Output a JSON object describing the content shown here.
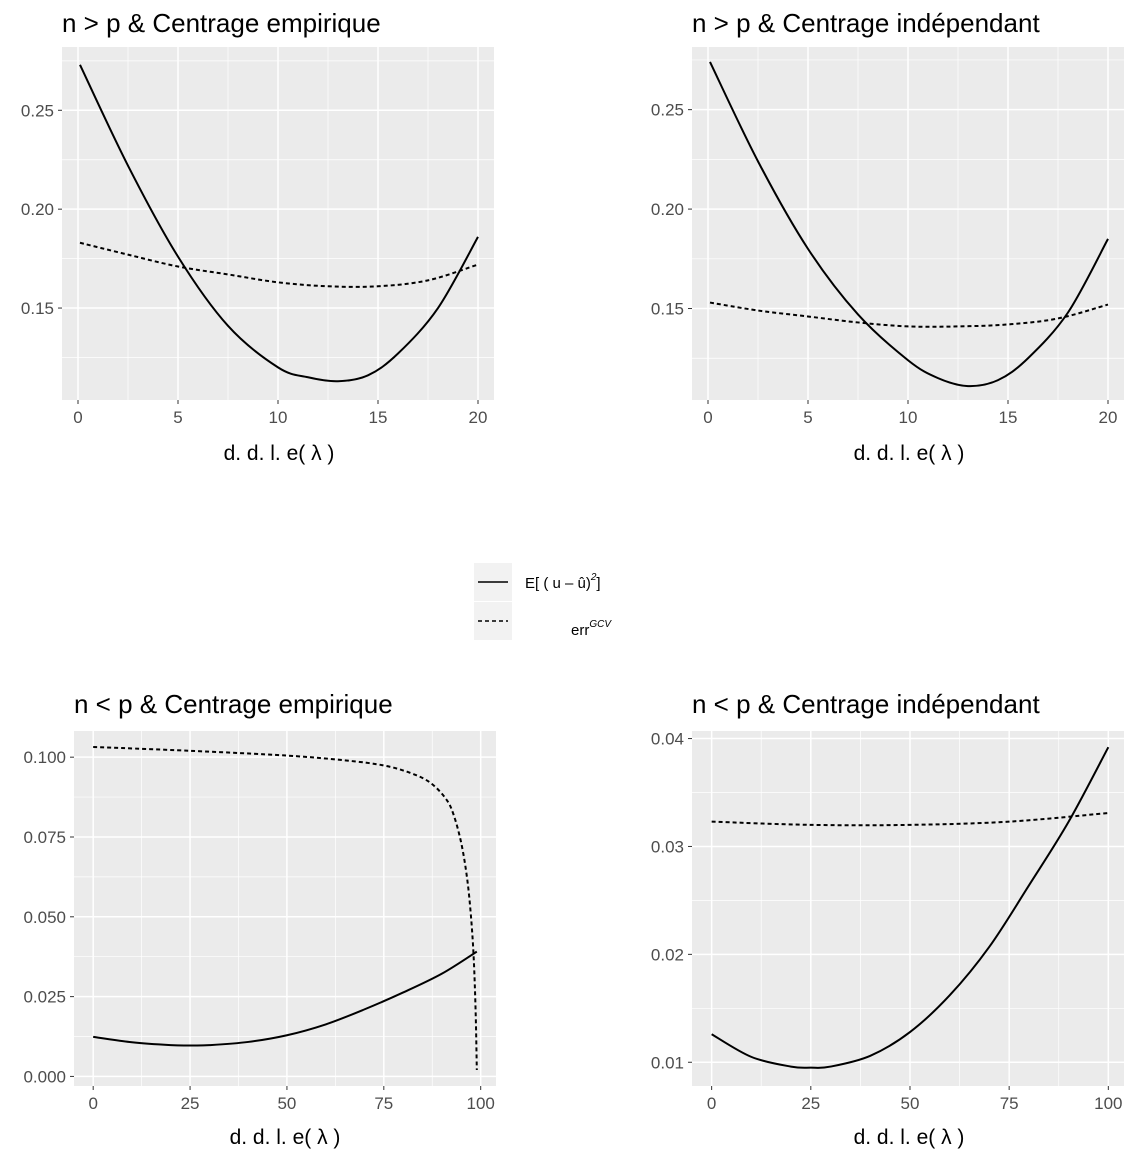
{
  "colors": {
    "panel_bg": "#ebebeb",
    "grid_major": "#ffffff",
    "tick_text": "#4d4d4d",
    "line": "#000000"
  },
  "legend": {
    "items": [
      {
        "key": "solid",
        "linetype": "solid",
        "label_main": "E[ ( u – û)",
        "label_sup": "2",
        "label_tail": "]"
      },
      {
        "key": "dashed",
        "linetype": "dashed",
        "label_main": "err",
        "label_sup": "GCV",
        "label_tail": ""
      }
    ]
  },
  "chart_data": [
    {
      "type": "line",
      "title": "n > p & Centrage empirique",
      "xlabel": "d. d. l. e( λ )",
      "ylabel": "",
      "xlim": [
        -0.8,
        20.8
      ],
      "ylim": [
        0.1035,
        0.282
      ],
      "x_ticks": [
        0,
        5,
        10,
        15,
        20
      ],
      "x_tick_labels": [
        "0",
        "5",
        "10",
        "15",
        "20"
      ],
      "y_ticks": [
        0.15,
        0.2,
        0.25
      ],
      "y_tick_labels": [
        "0.15",
        "0.20",
        "0.25"
      ],
      "grid": true,
      "series": [
        {
          "linetype": "solid",
          "x": [
            0.1,
            2.5,
            5,
            7.5,
            10,
            11.5,
            13,
            14.5,
            16,
            18,
            20
          ],
          "y": [
            0.273,
            0.222,
            0.176,
            0.141,
            0.12,
            0.115,
            0.113,
            0.116,
            0.127,
            0.15,
            0.186
          ]
        },
        {
          "linetype": "dashed",
          "x": [
            0.1,
            2.5,
            5,
            7.5,
            10,
            12.5,
            15,
            17.5,
            20
          ],
          "y": [
            0.183,
            0.177,
            0.171,
            0.167,
            0.163,
            0.161,
            0.161,
            0.164,
            0.172
          ]
        }
      ]
    },
    {
      "type": "line",
      "title": "n > p & Centrage indépendant",
      "xlabel": "d. d. l. e( λ )",
      "ylabel": "",
      "xlim": [
        -0.8,
        20.8
      ],
      "ylim": [
        0.104,
        0.2815
      ],
      "x_ticks": [
        0,
        5,
        10,
        15,
        20
      ],
      "x_tick_labels": [
        "0",
        "5",
        "10",
        "15",
        "20"
      ],
      "y_ticks": [
        0.15,
        0.2,
        0.25
      ],
      "y_tick_labels": [
        "0.15",
        "0.20",
        "0.25"
      ],
      "grid": true,
      "series": [
        {
          "linetype": "solid",
          "x": [
            0.1,
            2.5,
            5,
            7.5,
            10,
            11.5,
            13,
            14.5,
            16,
            18,
            20
          ],
          "y": [
            0.274,
            0.224,
            0.18,
            0.147,
            0.124,
            0.115,
            0.111,
            0.114,
            0.125,
            0.148,
            0.185
          ]
        },
        {
          "linetype": "dashed",
          "x": [
            0.1,
            2.5,
            5,
            7.5,
            10,
            12.5,
            15,
            17.5,
            20
          ],
          "y": [
            0.153,
            0.149,
            0.146,
            0.143,
            0.141,
            0.141,
            0.142,
            0.145,
            0.152
          ]
        }
      ]
    },
    {
      "type": "line",
      "title": "n < p & Centrage empirique",
      "xlabel": "d. d. l. e( λ )",
      "ylabel": "",
      "xlim": [
        -4.95,
        103.95
      ],
      "ylim": [
        -0.003,
        0.1082
      ],
      "x_ticks": [
        0,
        25,
        50,
        75,
        100
      ],
      "x_tick_labels": [
        "0",
        "25",
        "50",
        "75",
        "100"
      ],
      "y_ticks": [
        0.0,
        0.025,
        0.05,
        0.075,
        0.1
      ],
      "y_tick_labels": [
        "0.000",
        "0.025",
        "0.050",
        "0.075",
        "0.100"
      ],
      "grid": true,
      "series": [
        {
          "linetype": "solid",
          "x": [
            0,
            10,
            20,
            25,
            30,
            40,
            50,
            60,
            70,
            80,
            90,
            99
          ],
          "y": [
            0.0124,
            0.0107,
            0.0098,
            0.0097,
            0.0098,
            0.0108,
            0.0129,
            0.0163,
            0.021,
            0.0263,
            0.0322,
            0.0391
          ]
        },
        {
          "linetype": "dashed",
          "x": [
            0,
            25,
            50,
            65,
            75,
            82,
            87,
            91,
            93,
            95,
            96.5,
            97.5,
            98.2,
            98.7,
            99
          ],
          "y": [
            0.1032,
            0.102,
            0.1005,
            0.099,
            0.0974,
            0.095,
            0.092,
            0.087,
            0.082,
            0.073,
            0.062,
            0.05,
            0.037,
            0.02,
            0.002
          ]
        }
      ]
    },
    {
      "type": "line",
      "title": "n < p & Centrage indépendant",
      "xlabel": "d. d. l. e( λ )",
      "ylabel": "",
      "xlim": [
        -4.95,
        103.95
      ],
      "ylim": [
        0.0078,
        0.0407
      ],
      "x_ticks": [
        0,
        25,
        50,
        75,
        100
      ],
      "x_tick_labels": [
        "0",
        "25",
        "50",
        "75",
        "100"
      ],
      "y_ticks": [
        0.01,
        0.02,
        0.03,
        0.04
      ],
      "y_tick_labels": [
        "0.01",
        "0.02",
        "0.03",
        "0.04"
      ],
      "grid": true,
      "series": [
        {
          "linetype": "solid",
          "x": [
            0,
            10,
            20,
            25,
            30,
            40,
            50,
            60,
            70,
            80,
            90,
            100
          ],
          "y": [
            0.0126,
            0.0105,
            0.0096,
            0.0095,
            0.0096,
            0.0106,
            0.0128,
            0.0162,
            0.0207,
            0.0264,
            0.0323,
            0.0392
          ]
        },
        {
          "linetype": "dashed",
          "x": [
            0,
            25,
            50,
            75,
            100
          ],
          "y": [
            0.0323,
            0.032,
            0.032,
            0.0323,
            0.0331
          ]
        }
      ]
    }
  ]
}
